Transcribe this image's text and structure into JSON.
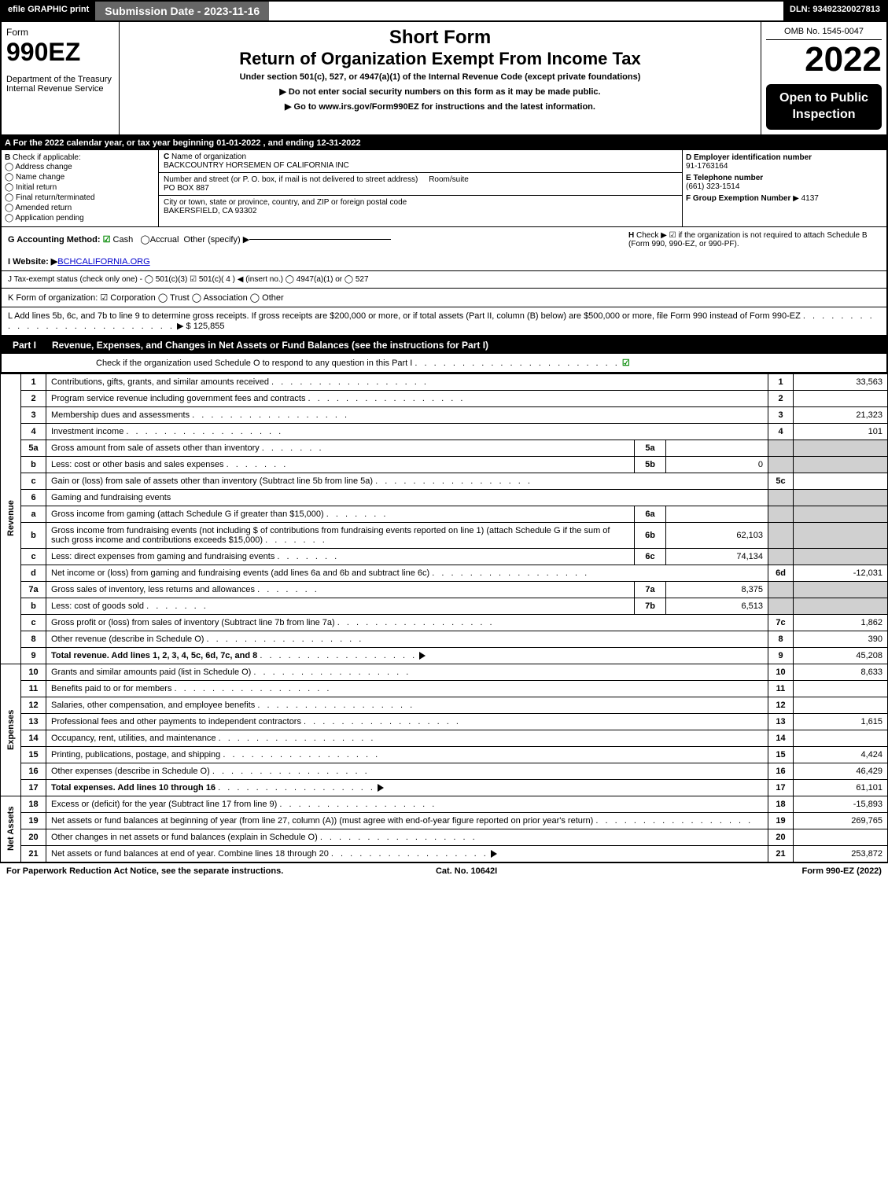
{
  "topbar": {
    "efile": "efile GRAPHIC print",
    "subdate": "Submission Date - 2023-11-16",
    "dln": "DLN: 93492320027813"
  },
  "header": {
    "form": "Form",
    "formno": "990EZ",
    "dept": "Department of the Treasury\nInternal Revenue Service",
    "short": "Short Form",
    "title": "Return of Organization Exempt From Income Tax",
    "sub": "Under section 501(c), 527, or 4947(a)(1) of the Internal Revenue Code (except private foundations)",
    "note1": "▶ Do not enter social security numbers on this form as it may be made public.",
    "note2": "▶ Go to www.irs.gov/Form990EZ for instructions and the latest information.",
    "omb": "OMB No. 1545-0047",
    "year": "2022",
    "open": "Open to Public Inspection"
  },
  "A": "For the 2022 calendar year, or tax year beginning 01-01-2022 , and ending 12-31-2022",
  "B": {
    "label": "Check if applicable:",
    "opts": [
      "Address change",
      "Name change",
      "Initial return",
      "Final return/terminated",
      "Amended return",
      "Application pending"
    ]
  },
  "C": {
    "name_lbl": "Name of organization",
    "name": "BACKCOUNTRY HORSEMEN OF CALIFORNIA INC",
    "street_lbl": "Number and street (or P. O. box, if mail is not delivered to street address)",
    "room_lbl": "Room/suite",
    "street": "PO BOX 887",
    "city_lbl": "City or town, state or province, country, and ZIP or foreign postal code",
    "city": "BAKERSFIELD, CA  93302"
  },
  "DE": {
    "d_lbl": "D Employer identification number",
    "d": "91-1763164",
    "e_lbl": "E Telephone number",
    "e": "(661) 323-1514",
    "f_lbl": "F Group Exemption Number",
    "f": "▶ 4137"
  },
  "G": {
    "lbl": "G Accounting Method:",
    "cash": "Cash",
    "accrual": "Accrual",
    "other": "Other (specify) ▶"
  },
  "H": {
    "txt": "Check ▶ ☑ if the organization is not required to attach Schedule B (Form 990, 990-EZ, or 990-PF)."
  },
  "I": {
    "lbl": "I Website: ▶",
    "val": "BCHCALIFORNIA.ORG"
  },
  "J": {
    "txt": "J Tax-exempt status (check only one) - ◯ 501(c)(3) ☑ 501(c)( 4 ) ◀ (insert no.) ◯ 4947(a)(1) or ◯ 527"
  },
  "K": {
    "txt": "K Form of organization: ☑ Corporation  ◯ Trust  ◯ Association  ◯ Other"
  },
  "L": {
    "txt": "L Add lines 5b, 6c, and 7b to line 9 to determine gross receipts. If gross receipts are $200,000 or more, or if total assets (Part II, column (B) below) are $500,000 or more, file Form 990 instead of Form 990-EZ",
    "amt": "▶ $ 125,855"
  },
  "partI": {
    "title": "Revenue, Expenses, and Changes in Net Assets or Fund Balances (see the instructions for Part I)",
    "sub": "Check if the organization used Schedule O to respond to any question in this Part I"
  },
  "groups": [
    "Revenue",
    "Expenses",
    "Net Assets"
  ],
  "rows": [
    {
      "n": "1",
      "d": "Contributions, gifts, grants, and similar amounts received",
      "r": "1",
      "v": "33,563"
    },
    {
      "n": "2",
      "d": "Program service revenue including government fees and contracts",
      "r": "2",
      "v": ""
    },
    {
      "n": "3",
      "d": "Membership dues and assessments",
      "r": "3",
      "v": "21,323"
    },
    {
      "n": "4",
      "d": "Investment income",
      "r": "4",
      "v": "101"
    },
    {
      "n": "5a",
      "d": "Gross amount from sale of assets other than inventory",
      "il": "5a",
      "iv": "",
      "grey": true
    },
    {
      "n": "b",
      "d": "Less: cost or other basis and sales expenses",
      "il": "5b",
      "iv": "0",
      "grey": true
    },
    {
      "n": "c",
      "d": "Gain or (loss) from sale of assets other than inventory (Subtract line 5b from line 5a)",
      "r": "5c",
      "v": ""
    },
    {
      "n": "6",
      "d": "Gaming and fundraising events",
      "grey": true
    },
    {
      "n": "a",
      "d": "Gross income from gaming (attach Schedule G if greater than $15,000)",
      "il": "6a",
      "iv": "",
      "grey": true
    },
    {
      "n": "b",
      "d": "Gross income from fundraising events (not including $                    of contributions from fundraising events reported on line 1) (attach Schedule G if the sum of such gross income and contributions exceeds $15,000)",
      "il": "6b",
      "iv": "62,103",
      "grey": true
    },
    {
      "n": "c",
      "d": "Less: direct expenses from gaming and fundraising events",
      "il": "6c",
      "iv": "74,134",
      "grey": true
    },
    {
      "n": "d",
      "d": "Net income or (loss) from gaming and fundraising events (add lines 6a and 6b and subtract line 6c)",
      "r": "6d",
      "v": "-12,031"
    },
    {
      "n": "7a",
      "d": "Gross sales of inventory, less returns and allowances",
      "il": "7a",
      "iv": "8,375",
      "grey": true
    },
    {
      "n": "b",
      "d": "Less: cost of goods sold",
      "il": "7b",
      "iv": "6,513",
      "grey": true
    },
    {
      "n": "c",
      "d": "Gross profit or (loss) from sales of inventory (Subtract line 7b from line 7a)",
      "r": "7c",
      "v": "1,862"
    },
    {
      "n": "8",
      "d": "Other revenue (describe in Schedule O)",
      "r": "8",
      "v": "390"
    },
    {
      "n": "9",
      "d": "Total revenue. Add lines 1, 2, 3, 4, 5c, 6d, 7c, and 8",
      "r": "9",
      "v": "45,208",
      "bold": true,
      "arrow": true
    }
  ],
  "rows2": [
    {
      "n": "10",
      "d": "Grants and similar amounts paid (list in Schedule O)",
      "r": "10",
      "v": "8,633"
    },
    {
      "n": "11",
      "d": "Benefits paid to or for members",
      "r": "11",
      "v": ""
    },
    {
      "n": "12",
      "d": "Salaries, other compensation, and employee benefits",
      "r": "12",
      "v": ""
    },
    {
      "n": "13",
      "d": "Professional fees and other payments to independent contractors",
      "r": "13",
      "v": "1,615"
    },
    {
      "n": "14",
      "d": "Occupancy, rent, utilities, and maintenance",
      "r": "14",
      "v": ""
    },
    {
      "n": "15",
      "d": "Printing, publications, postage, and shipping",
      "r": "15",
      "v": "4,424"
    },
    {
      "n": "16",
      "d": "Other expenses (describe in Schedule O)",
      "r": "16",
      "v": "46,429"
    },
    {
      "n": "17",
      "d": "Total expenses. Add lines 10 through 16",
      "r": "17",
      "v": "61,101",
      "bold": true,
      "arrow": true
    }
  ],
  "rows3": [
    {
      "n": "18",
      "d": "Excess or (deficit) for the year (Subtract line 17 from line 9)",
      "r": "18",
      "v": "-15,893"
    },
    {
      "n": "19",
      "d": "Net assets or fund balances at beginning of year (from line 27, column (A)) (must agree with end-of-year figure reported on prior year's return)",
      "r": "19",
      "v": "269,765"
    },
    {
      "n": "20",
      "d": "Other changes in net assets or fund balances (explain in Schedule O)",
      "r": "20",
      "v": ""
    },
    {
      "n": "21",
      "d": "Net assets or fund balances at end of year. Combine lines 18 through 20",
      "r": "21",
      "v": "253,872",
      "arrow": true
    }
  ],
  "ftr": {
    "l": "For Paperwork Reduction Act Notice, see the separate instructions.",
    "m": "Cat. No. 10642I",
    "r": "Form 990-EZ (2022)"
  }
}
